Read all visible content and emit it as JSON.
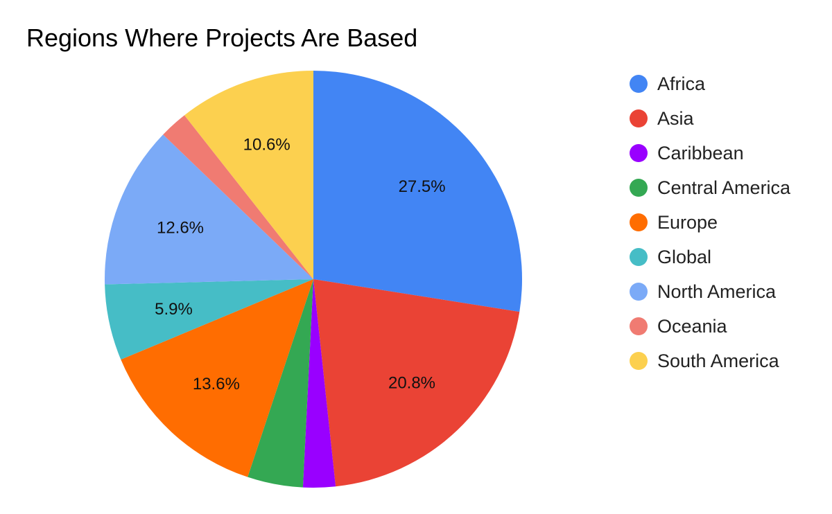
{
  "chart_data": {
    "type": "pie",
    "title": "Regions Where Projects Are Based",
    "legend_position": "right",
    "slices": [
      {
        "label": "Africa",
        "value": 27.5,
        "color": "#4285f4",
        "display": "27.5%"
      },
      {
        "label": "Asia",
        "value": 20.8,
        "color": "#ea4335",
        "display": "20.8%"
      },
      {
        "label": "Caribbean",
        "value": 2.5,
        "color": "#9900ff",
        "display": ""
      },
      {
        "label": "Central America",
        "value": 4.3,
        "color": "#34a853",
        "display": ""
      },
      {
        "label": "Europe",
        "value": 13.6,
        "color": "#ff6d01",
        "display": "13.6%"
      },
      {
        "label": "Global",
        "value": 5.9,
        "color": "#46bdc6",
        "display": "5.9%"
      },
      {
        "label": "North America",
        "value": 12.6,
        "color": "#7baaf7",
        "display": "12.6%"
      },
      {
        "label": "Oceania",
        "value": 2.2,
        "color": "#f07b72",
        "display": ""
      },
      {
        "label": "South America",
        "value": 10.6,
        "color": "#fcd04f",
        "display": "10.6%"
      }
    ]
  }
}
